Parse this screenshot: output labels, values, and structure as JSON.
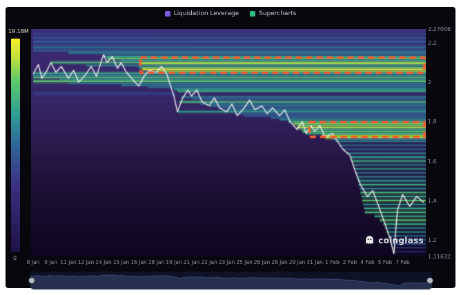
{
  "watermark": {
    "text": "coinglass"
  },
  "chart_data": {
    "type": "heatmap",
    "title": "Liquidation Leverage Heatmap",
    "legend": [
      {
        "label": "Liquidation Leverage",
        "color": "#7b5ce0"
      },
      {
        "label": "Supercharts",
        "color": "#2ebd85"
      }
    ],
    "colorbar": {
      "top_label": "19.18M",
      "bottom_label": "0",
      "stops": [
        [
          0,
          "#1e1145"
        ],
        [
          0.3,
          "#3b2d80"
        ],
        [
          0.5,
          "#30659b"
        ],
        [
          0.65,
          "#2fa093"
        ],
        [
          0.8,
          "#5cc96b"
        ],
        [
          0.92,
          "#c8e23c"
        ],
        [
          1,
          "#f6ee27"
        ]
      ]
    },
    "y_axis": {
      "min": 1.11632,
      "max": 2.27006,
      "top_label": "2.27006",
      "bottom_label": "1.11632",
      "ticks": [
        2.2,
        2,
        1.8,
        1.6,
        1.4,
        1.2
      ]
    },
    "x_axis": {
      "labels": [
        "8 Jan",
        "9 Jan",
        "11 Jan",
        "12 Jan",
        "14 Jan",
        "15 Jan",
        "16 Jan",
        "18 Jan",
        "19 Jan",
        "21 Jan",
        "22 Jan",
        "23 Jan",
        "25 Jan",
        "26 Jan",
        "28 Jan",
        "29 Jan",
        "31 Jan",
        "1 Feb",
        "2 Feb",
        "4 Feb",
        "5 Feb",
        "7 Feb"
      ]
    },
    "background_gradient": [
      [
        0,
        "#3c2b72"
      ],
      [
        0.35,
        "#342463"
      ],
      [
        0.55,
        "#281747"
      ],
      [
        0.75,
        "#190d30"
      ],
      [
        1,
        "#0e0620"
      ]
    ],
    "price_color": "#f2f3f5",
    "highlight_color": "#fb5b2f",
    "price_series": {
      "t": [
        0,
        0.3,
        0.5,
        0.8,
        1,
        1.3,
        1.6,
        2,
        2.3,
        2.6,
        3,
        3.3,
        3.6,
        4,
        4.2,
        4.5,
        4.8,
        5,
        5.3,
        5.6,
        6,
        6.3,
        6.6,
        7,
        7.3,
        7.6,
        8,
        8.2,
        8.5,
        8.8,
        9,
        9.3,
        9.6,
        10,
        10.3,
        10.6,
        11,
        11.3,
        11.6,
        12,
        12.3,
        12.6,
        13,
        13.3,
        13.6,
        14,
        14.3,
        14.6,
        15,
        15.3,
        15.5,
        15.8,
        16,
        16.3,
        16.6,
        17,
        17.3,
        17.6,
        18,
        18.3,
        18.6,
        19,
        19.3,
        19.6,
        20,
        20.3,
        20.5,
        20.7,
        21,
        21.4,
        21.8,
        22.2
      ],
      "p": [
        2.04,
        2.09,
        2.02,
        2.06,
        2.1,
        2.05,
        2.08,
        2.02,
        2.06,
        2.0,
        2.04,
        2.08,
        2.03,
        2.14,
        2.1,
        2.13,
        2.07,
        2.1,
        2.05,
        2.02,
        1.98,
        2.03,
        2.06,
        2.05,
        2.08,
        2.04,
        1.93,
        1.85,
        1.92,
        1.96,
        1.93,
        1.96,
        1.9,
        1.88,
        1.92,
        1.87,
        1.85,
        1.89,
        1.83,
        1.87,
        1.91,
        1.86,
        1.88,
        1.84,
        1.87,
        1.83,
        1.86,
        1.8,
        1.76,
        1.8,
        1.74,
        1.78,
        1.75,
        1.78,
        1.72,
        1.74,
        1.7,
        1.66,
        1.63,
        1.55,
        1.48,
        1.42,
        1.45,
        1.38,
        1.28,
        1.2,
        1.13,
        1.35,
        1.43,
        1.37,
        1.42,
        1.39
      ]
    },
    "liquidation_bands": [
      [
        2.265,
        0,
        22.35,
        0.35,
        1.5
      ],
      [
        2.255,
        0,
        5,
        0.3,
        1
      ],
      [
        2.245,
        0,
        22.35,
        0.4,
        1.5
      ],
      [
        2.235,
        0,
        7,
        0.3,
        1
      ],
      [
        2.225,
        0,
        22.35,
        0.45,
        2
      ],
      [
        2.215,
        0,
        4,
        0.3,
        1
      ],
      [
        2.205,
        0,
        22.35,
        0.5,
        2
      ],
      [
        2.195,
        0,
        9,
        0.35,
        1
      ],
      [
        2.185,
        0,
        22.35,
        0.45,
        1.5
      ],
      [
        2.175,
        0,
        22.35,
        0.55,
        2
      ],
      [
        2.16,
        0,
        22.35,
        0.5,
        1.5
      ],
      [
        2.15,
        2,
        22.35,
        0.6,
        2
      ],
      [
        2.14,
        4,
        22.35,
        0.5,
        1.5
      ],
      [
        2.13,
        4,
        22.35,
        0.65,
        2
      ],
      [
        2.12,
        4.2,
        22.35,
        0.8,
        2.5
      ],
      [
        2.11,
        5,
        22.35,
        0.6,
        1.5
      ],
      [
        2.1,
        1,
        22.35,
        0.75,
        2
      ],
      [
        2.095,
        6,
        22.35,
        0.9,
        2.5
      ],
      [
        2.085,
        3,
        22.35,
        0.6,
        1.5
      ],
      [
        2.075,
        6,
        22.35,
        0.7,
        2
      ],
      [
        2.065,
        6.2,
        22.35,
        0.95,
        2.5
      ],
      [
        2.055,
        7,
        22.35,
        0.85,
        2
      ],
      [
        2.045,
        0,
        22.35,
        0.7,
        2
      ],
      [
        2.035,
        0,
        22.35,
        0.55,
        1.5
      ],
      [
        2.025,
        0,
        22.35,
        0.75,
        2
      ],
      [
        2.015,
        1.5,
        22.35,
        0.6,
        1.5
      ],
      [
        2.005,
        0,
        22.35,
        0.8,
        2.5
      ],
      [
        1.995,
        2,
        22.35,
        0.55,
        1.5
      ],
      [
        1.985,
        5,
        22.35,
        0.6,
        1.5
      ],
      [
        1.975,
        6.5,
        22.35,
        0.55,
        1.5
      ],
      [
        1.965,
        8,
        22.35,
        0.65,
        2
      ],
      [
        1.955,
        8.2,
        22.35,
        0.7,
        2
      ],
      [
        1.945,
        0,
        8.1,
        0.4,
        1.5
      ],
      [
        1.935,
        0,
        8.2,
        0.35,
        1
      ],
      [
        1.925,
        8.4,
        22.35,
        0.6,
        1.5
      ],
      [
        1.915,
        9,
        22.35,
        0.5,
        1.5
      ],
      [
        1.905,
        0,
        8.2,
        0.3,
        1
      ],
      [
        1.9,
        8.3,
        22.35,
        0.75,
        2
      ],
      [
        1.89,
        9.5,
        22.35,
        0.55,
        1.5
      ],
      [
        1.88,
        10,
        22.35,
        0.6,
        1.5
      ],
      [
        1.87,
        10.5,
        22.35,
        0.5,
        1.5
      ],
      [
        1.86,
        11,
        22.35,
        0.6,
        1.5
      ],
      [
        1.85,
        8.2,
        22.35,
        0.65,
        2
      ],
      [
        1.84,
        11.5,
        22.35,
        0.5,
        1.5
      ],
      [
        1.83,
        12,
        22.35,
        0.5,
        1.5
      ],
      [
        1.82,
        13.5,
        22.35,
        0.55,
        1.5
      ],
      [
        1.81,
        14,
        22.35,
        0.6,
        1.5
      ],
      [
        1.8,
        14.5,
        22.35,
        0.7,
        2
      ],
      [
        1.79,
        14.8,
        22.35,
        0.85,
        2.5
      ],
      [
        1.78,
        15,
        22.35,
        0.75,
        2
      ],
      [
        1.77,
        15,
        22.35,
        0.9,
        2.5
      ],
      [
        1.76,
        15.2,
        22.35,
        0.65,
        1.5
      ],
      [
        1.75,
        15.3,
        22.35,
        0.8,
        2
      ],
      [
        1.74,
        15.5,
        22.35,
        0.7,
        2
      ],
      [
        1.73,
        16.4,
        22.35,
        0.85,
        2
      ],
      [
        1.72,
        16.6,
        22.35,
        0.9,
        2.5
      ],
      [
        1.71,
        17,
        22.35,
        0.55,
        1.5
      ],
      [
        1.7,
        17.2,
        22.35,
        0.6,
        1.5
      ],
      [
        1.68,
        17.4,
        22.35,
        0.55,
        1.5
      ],
      [
        1.66,
        17.6,
        22.35,
        0.5,
        1.5
      ],
      [
        1.64,
        17.8,
        22.35,
        0.6,
        1.5
      ],
      [
        1.62,
        18,
        22.35,
        0.65,
        2
      ],
      [
        1.6,
        18.1,
        22.35,
        0.7,
        2
      ],
      [
        1.58,
        18.2,
        22.35,
        0.6,
        1.5
      ],
      [
        1.56,
        18.3,
        22.35,
        0.65,
        1.5
      ],
      [
        1.54,
        18.35,
        22.35,
        0.55,
        1.5
      ],
      [
        1.52,
        18.4,
        22.35,
        0.6,
        1.5
      ],
      [
        1.5,
        18.45,
        22.35,
        0.65,
        2
      ],
      [
        1.48,
        18.5,
        22.35,
        0.7,
        2
      ],
      [
        1.46,
        18.55,
        22.35,
        0.6,
        1.5
      ],
      [
        1.44,
        18.6,
        22.35,
        0.75,
        2
      ],
      [
        1.42,
        18.65,
        22.35,
        0.7,
        2
      ],
      [
        1.4,
        18.7,
        22.35,
        0.8,
        2
      ],
      [
        1.38,
        18.75,
        22.35,
        0.65,
        1.5
      ],
      [
        1.36,
        18.8,
        22.35,
        0.7,
        2
      ],
      [
        1.34,
        18.85,
        22.35,
        0.75,
        2
      ],
      [
        1.32,
        19.4,
        22.35,
        0.7,
        2
      ],
      [
        1.3,
        19.7,
        22.35,
        0.8,
        2
      ],
      [
        1.28,
        19.9,
        22.35,
        0.7,
        2
      ],
      [
        1.26,
        20,
        22.35,
        0.6,
        1.5
      ],
      [
        1.24,
        20.1,
        22.35,
        0.65,
        1.5
      ],
      [
        1.22,
        20.2,
        22.35,
        0.55,
        1.5
      ],
      [
        1.2,
        20.3,
        22.35,
        0.5,
        1.5
      ],
      [
        1.18,
        20.35,
        22.35,
        0.45,
        1.5
      ],
      [
        1.16,
        20.4,
        22.35,
        0.4,
        1
      ],
      [
        1.14,
        20.45,
        22.35,
        0.35,
        1
      ]
    ],
    "highlight_boxes": [
      {
        "t0": 6.1,
        "t1": 22.35,
        "p_top": 2.125,
        "p_bottom": 2.048
      },
      {
        "t0": 15.7,
        "t1": 22.35,
        "p_top": 1.797,
        "p_bottom": 1.723
      }
    ]
  }
}
